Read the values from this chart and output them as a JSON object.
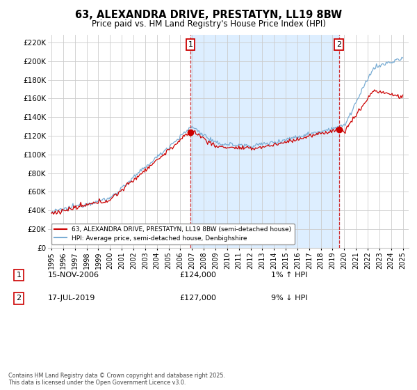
{
  "title": "63, ALEXANDRA DRIVE, PRESTATYN, LL19 8BW",
  "subtitle": "Price paid vs. HM Land Registry's House Price Index (HPI)",
  "ylabel_ticks": [
    0,
    20000,
    40000,
    60000,
    80000,
    100000,
    120000,
    140000,
    160000,
    180000,
    200000,
    220000
  ],
  "ylabel_labels": [
    "£0",
    "£20K",
    "£40K",
    "£60K",
    "£80K",
    "£100K",
    "£120K",
    "£140K",
    "£160K",
    "£180K",
    "£200K",
    "£220K"
  ],
  "xlim_lo": 1994.7,
  "xlim_hi": 2025.5,
  "ylim_lo": 0,
  "ylim_hi": 228000,
  "transaction1_year": 2006.875,
  "transaction1_price": 124000,
  "transaction1_label": "1",
  "transaction1_date": "15-NOV-2006",
  "transaction1_pct": "1%",
  "transaction1_dir": "↑",
  "transaction2_year": 2019.54,
  "transaction2_price": 127000,
  "transaction2_label": "2",
  "transaction2_date": "17-JUL-2019",
  "transaction2_pct": "9%",
  "transaction2_dir": "↓",
  "red_color": "#cc0000",
  "blue_color": "#7aadd4",
  "shade_color": "#ddeeff",
  "background_color": "#ffffff",
  "grid_color": "#cccccc",
  "legend_label_red": "63, ALEXANDRA DRIVE, PRESTATYN, LL19 8BW (semi-detached house)",
  "legend_label_blue": "HPI: Average price, semi-detached house, Denbighshire",
  "footer_text": "Contains HM Land Registry data © Crown copyright and database right 2025.\nThis data is licensed under the Open Government Licence v3.0."
}
